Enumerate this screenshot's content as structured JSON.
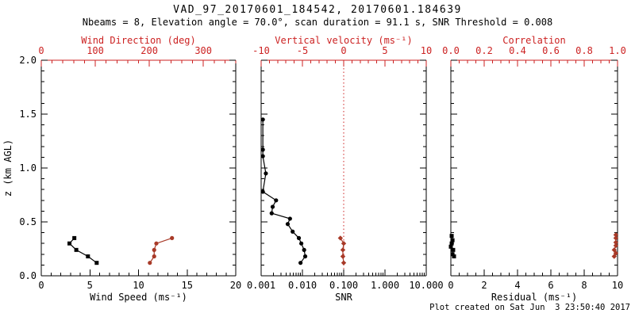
{
  "header": {
    "title": "VAD_97_20170601_184542, 20170601.184639",
    "subtitle": "Nbeams = 8, Elevation angle = 70.0°, scan duration = 91.1 s, SNR Threshold = 0.008"
  },
  "footer": {
    "created": "Plot created on Sat Jun  3 23:50:40 2017"
  },
  "colors": {
    "axis_red": "#cc2222",
    "data_red": "#a83a28",
    "black": "#000000",
    "background": "#ffffff"
  },
  "chart_data": [
    {
      "id": "wind-panel",
      "type": "line",
      "xlabel": "Wind Speed (ms⁻¹)",
      "xlabel_top": "Wind Direction (deg)",
      "ylabel": "z (km AGL)",
      "show_ylabels": true,
      "x_bottom": {
        "scale": "linear",
        "min": 0,
        "max": 20,
        "major": [
          0,
          5,
          10,
          15,
          20
        ],
        "labels": [
          "0",
          "5",
          "10",
          "15",
          "20"
        ],
        "minor_step": 1
      },
      "x_top": {
        "scale": "linear",
        "min": 0,
        "max": 360,
        "major": [
          0,
          100,
          200,
          300
        ],
        "labels": [
          "0",
          "100",
          "200",
          "300"
        ],
        "minor_step": 20
      },
      "y": {
        "min": 0,
        "max": 2,
        "major": [
          0,
          0.5,
          1,
          1.5,
          2
        ],
        "labels": [
          "0.0",
          "0.5",
          "1.0",
          "1.5",
          "2.0"
        ],
        "minor_step": 0.1
      },
      "series": [
        {
          "name": "wind-speed",
          "axis": "bottom",
          "color": "black",
          "marker": "square",
          "z": [
            0.35,
            0.3,
            0.24,
            0.18,
            0.12
          ],
          "v": [
            3.4,
            2.9,
            3.6,
            4.8,
            5.7
          ]
        },
        {
          "name": "wind-direction",
          "axis": "top",
          "color": "data_red",
          "marker": "circle",
          "z": [
            0.35,
            0.3,
            0.24,
            0.18,
            0.12
          ],
          "v": [
            242,
            213,
            209,
            209,
            201
          ]
        }
      ]
    },
    {
      "id": "snr-panel",
      "type": "line",
      "xlabel": "SNR",
      "xlabel_top": "Vertical velocity (ms⁻¹)",
      "ylabel": "",
      "show_ylabels": false,
      "x_bottom": {
        "scale": "log",
        "min": 0.001,
        "max": 10,
        "major": [
          0.001,
          0.01,
          0.1,
          1,
          10
        ],
        "labels": [
          "0.001",
          "0.010",
          "0.100",
          "1.000",
          "10.000"
        ]
      },
      "x_top": {
        "scale": "linear",
        "min": -10,
        "max": 10,
        "major": [
          -10,
          -5,
          0,
          5,
          10
        ],
        "labels": [
          "-10",
          "-5",
          "0",
          "5",
          "10"
        ],
        "minor_step": 1
      },
      "y": {
        "min": 0,
        "max": 2,
        "major": [
          0,
          0.5,
          1,
          1.5,
          2
        ],
        "labels": [
          "0.0",
          "0.5",
          "1.0",
          "1.5",
          "2.0"
        ],
        "minor_step": 0.1
      },
      "refline": {
        "axis": "top",
        "value": 0,
        "color": "axis_red",
        "style": "dotted"
      },
      "series": [
        {
          "name": "snr",
          "axis": "bottom",
          "color": "black",
          "marker": "circle",
          "z": [
            1.45,
            1.17,
            1.11,
            0.95,
            0.78,
            0.7,
            0.64,
            0.58,
            0.53,
            0.48,
            0.41,
            0.35,
            0.3,
            0.24,
            0.18,
            0.12
          ],
          "v": [
            0.0011,
            0.0011,
            0.0011,
            0.0013,
            0.0011,
            0.0023,
            0.0019,
            0.0018,
            0.005,
            0.0044,
            0.0058,
            0.0082,
            0.0094,
            0.011,
            0.0117,
            0.009
          ]
        },
        {
          "name": "vertical-velocity",
          "axis": "top",
          "color": "data_red",
          "marker": "diamond",
          "z": [
            0.35,
            0.3,
            0.24,
            0.18,
            0.12
          ],
          "v": [
            -0.4,
            0.0,
            -0.1,
            -0.1,
            0.0
          ]
        }
      ]
    },
    {
      "id": "residual-panel",
      "type": "line",
      "xlabel": "Residual (ms⁻¹)",
      "xlabel_top": "Correlation",
      "ylabel": "",
      "show_ylabels": false,
      "x_bottom": {
        "scale": "linear",
        "min": 0,
        "max": 10,
        "major": [
          0,
          2,
          4,
          6,
          8,
          10
        ],
        "labels": [
          "0",
          "2",
          "4",
          "6",
          "8",
          "10"
        ],
        "minor_step": 0.5
      },
      "x_top": {
        "scale": "linear",
        "min": 0,
        "max": 1,
        "major": [
          0,
          0.2,
          0.4,
          0.6,
          0.8,
          1
        ],
        "labels": [
          "0.0",
          "0.2",
          "0.4",
          "0.6",
          "0.8",
          "1.0"
        ],
        "minor_step": 0.05
      },
      "y": {
        "min": 0,
        "max": 2,
        "major": [
          0,
          0.5,
          1,
          1.5,
          2
        ],
        "labels": [
          "0.0",
          "0.5",
          "1.0",
          "1.5",
          "2.0"
        ],
        "minor_step": 0.1
      },
      "series": [
        {
          "name": "residual",
          "axis": "bottom",
          "color": "black",
          "marker": "square",
          "z": [
            0.37,
            0.33,
            0.3,
            0.27,
            0.24,
            0.2,
            0.18
          ],
          "v": [
            0.05,
            0.1,
            0.05,
            0.0,
            0.14,
            0.1,
            0.19
          ]
        },
        {
          "name": "correlation",
          "axis": "top",
          "color": "data_red",
          "marker": "diamond",
          "z": [
            0.38,
            0.35,
            0.31,
            0.28,
            0.24,
            0.21,
            0.18
          ],
          "v": [
            0.99,
            0.99,
            0.99,
            0.99,
            0.98,
            0.99,
            0.98
          ]
        }
      ]
    }
  ]
}
